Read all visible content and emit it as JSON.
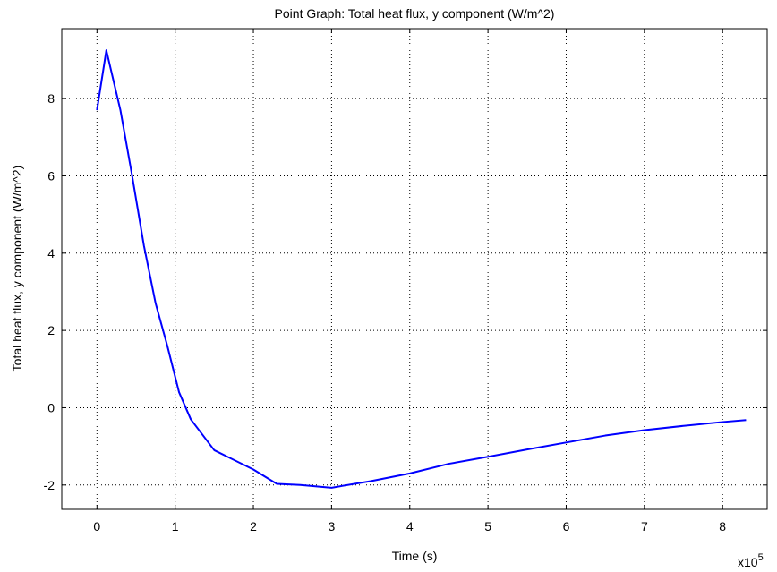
{
  "chart_data": {
    "type": "line",
    "title": "Point Graph: Total heat flux, y component (W/m^2)",
    "x_label": "Time (s)",
    "y_label": "Total heat flux, y component (W/m^2)",
    "x_multiplier": {
      "base": "x10",
      "exponent": "5"
    },
    "x": [
      0,
      0.12,
      0.3,
      0.45,
      0.6,
      0.75,
      0.9,
      1.05,
      1.2,
      1.5,
      2.0,
      2.3,
      2.6,
      3.0,
      3.5,
      4.0,
      4.5,
      5.0,
      5.5,
      6.0,
      6.5,
      7.0,
      7.5,
      8.0,
      8.3
    ],
    "series": [
      {
        "color": "#0000ff",
        "values": [
          7.7,
          9.25,
          7.7,
          6.0,
          4.2,
          2.7,
          1.6,
          0.4,
          -0.3,
          -1.1,
          -1.6,
          -1.97,
          -2.0,
          -2.07,
          -1.9,
          -1.7,
          -1.45,
          -1.27,
          -1.08,
          -0.9,
          -0.72,
          -0.58,
          -0.47,
          -0.37,
          -0.32
        ]
      }
    ],
    "xlim": [
      -0.45,
      8.57
    ],
    "ylim": [
      -2.63,
      9.81
    ],
    "xticks": [
      0,
      1,
      2,
      3,
      4,
      5,
      6,
      7,
      8
    ],
    "yticks": [
      -2,
      0,
      2,
      4,
      6,
      8
    ],
    "grid": true
  }
}
